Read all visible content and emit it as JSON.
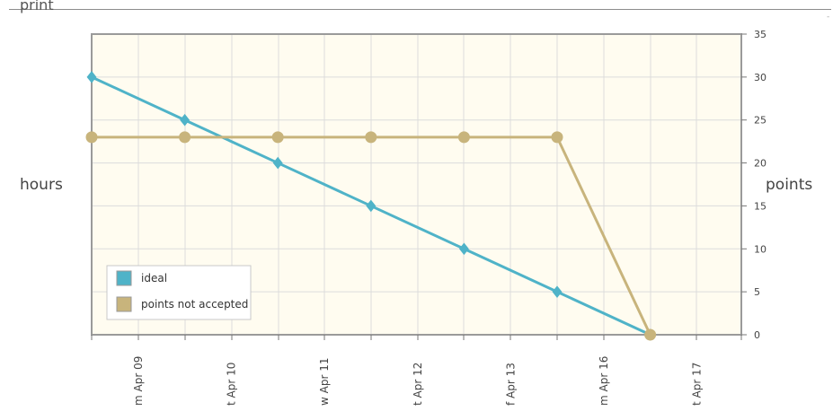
{
  "header": {
    "print_label": "print",
    "corner_mark": "-"
  },
  "chart_data": {
    "type": "line",
    "title": "",
    "xlabel": "",
    "ylabel": "hours",
    "y2label": "points",
    "categories": [
      "m Apr 09",
      "t Apr 10",
      "w Apr 11",
      "t Apr 12",
      "f Apr 13",
      "m Apr 16",
      "t Apr 17"
    ],
    "ylim": [
      0,
      35
    ],
    "yticks": [
      0,
      5,
      10,
      15,
      20,
      25,
      30,
      35
    ],
    "grid": true,
    "legend_position": "bottom-left",
    "series": [
      {
        "name": "ideal",
        "color": "#4fb3c8",
        "marker": "diamond",
        "points": [
          [
            0,
            30
          ],
          [
            1,
            25
          ],
          [
            2,
            20
          ],
          [
            3,
            15
          ],
          [
            4,
            10
          ],
          [
            5,
            5
          ],
          [
            6,
            0
          ]
        ]
      },
      {
        "name": "points not accepted",
        "color": "#c8b47c",
        "marker": "circle",
        "points": [
          [
            0,
            23
          ],
          [
            1,
            23
          ],
          [
            2,
            23
          ],
          [
            3,
            23
          ],
          [
            4,
            23
          ],
          [
            5,
            23
          ],
          [
            6,
            0
          ]
        ]
      }
    ]
  }
}
